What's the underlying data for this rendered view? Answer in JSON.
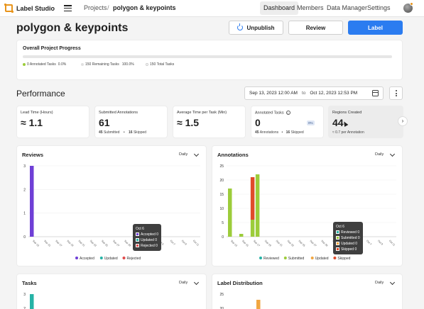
{
  "app": {
    "name": "Label Studio"
  },
  "breadcrumb": {
    "projects": "Projects",
    "separator": "/",
    "current": "polygon & keypoints"
  },
  "nav": {
    "dashboard": "Dashboard",
    "members": "Members",
    "data_manager": "Data Manager",
    "settings": "Settings"
  },
  "header": {
    "title": "polygon & keypoints",
    "unpublish": "Unpublish",
    "review": "Review",
    "label": "Label"
  },
  "progress": {
    "title": "Overall Project Progress",
    "annotated_label": "0 Annotated Tasks",
    "annotated_pct": "0.0%",
    "remaining_label": "150 Remaining Tasks",
    "remaining_pct": "100.0%",
    "total_label": "150 Total Tasks",
    "annotated_fraction": 0.0
  },
  "performance": {
    "title": "Performance",
    "date_from": "Sep 13, 2023 12:00 AM",
    "date_to_word": "to",
    "date_to": "Oct 12, 2023 12:53 PM"
  },
  "metrics": {
    "lead_time": {
      "label": "Lead Time (Hours)",
      "value": "≈ 1.1"
    },
    "submitted": {
      "label": "Submitted Annotations",
      "value": "61",
      "sub_a_num": "45",
      "sub_a_text": "Submitted",
      "sub_b_num": "16",
      "sub_b_text": "Skipped"
    },
    "avg_time": {
      "label": "Average Time per Task (Min)",
      "value": "≈ 1.5"
    },
    "annotated_tasks": {
      "label": "Annotated Tasks",
      "value": "0",
      "badge": "0%",
      "sub_a_num": "45",
      "sub_a_text": "Annotations",
      "sub_b_num": "16",
      "sub_b_text": "Skipped"
    },
    "regions": {
      "label": "Regions Created",
      "value": "44",
      "sub": "≈ 0.7 per Annotation"
    },
    "next_arrow": "›"
  },
  "colors": {
    "accepted": "#6f3fd6",
    "updated": "#26b3a6",
    "rejected": "#e04b4b",
    "reviewed": "#26b3a6",
    "submitted": "#9ccc3a",
    "annot_updated": "#f1a641",
    "skipped": "#e04b2a",
    "primary": "#2b7cf0"
  },
  "panels": {
    "reviews": {
      "title": "Reviews",
      "select": "Daily"
    },
    "annotations": {
      "title": "Annotations",
      "select": "Daily"
    },
    "tasks": {
      "title": "Tasks",
      "select": "Daily"
    },
    "label_distribution": {
      "title": "Label Distribution",
      "select": "Daily"
    }
  },
  "tooltips": {
    "reviews": {
      "date": "Oct 6",
      "l1": "Accepted 0",
      "l2": "Updated 0",
      "l3": "Rejected 0"
    },
    "annotations": {
      "date": "Oct 6",
      "l1": "Reviewed 0",
      "l2": "Submitted 0",
      "l3": "Updated 0",
      "l4": "Skipped 0"
    }
  },
  "chart_data": [
    {
      "name": "Reviews",
      "type": "bar",
      "categories": [
        "Sep 13",
        "Sep 15",
        "Sep 17",
        "Sep 19",
        "Sep 21",
        "Sep 23",
        "Sep 25",
        "Sep 27",
        "Sep 29",
        "Oct 1",
        "Oct 3",
        "Oct 5",
        "Oct 7",
        "Oct 9",
        "Oct 11"
      ],
      "series": [
        {
          "name": "Accepted",
          "values": [
            3,
            0,
            0,
            0,
            0,
            0,
            0,
            0,
            0,
            0,
            0,
            0,
            0,
            0,
            0
          ]
        },
        {
          "name": "Updated",
          "values": [
            0,
            0,
            0,
            0,
            0,
            0,
            0,
            0,
            0,
            0,
            0,
            0,
            0,
            0,
            0
          ]
        },
        {
          "name": "Rejected",
          "values": [
            0,
            0,
            0,
            0,
            0,
            0,
            0,
            0,
            0,
            0,
            0,
            0,
            0,
            0,
            0
          ]
        }
      ],
      "ylim": [
        0,
        3
      ],
      "yticks": [
        "0",
        "1",
        "2",
        "3"
      ],
      "legend": "bottom"
    },
    {
      "name": "Annotations",
      "type": "bar",
      "stacked": true,
      "categories": [
        "Sep 13",
        "Sep 15",
        "Sep 17",
        "Sep 19",
        "Sep 21",
        "Sep 23",
        "Sep 25",
        "Sep 27",
        "Sep 29",
        "Oct 1",
        "Oct 3",
        "Oct 5",
        "Oct 7",
        "Oct 9",
        "Oct 11"
      ],
      "series": [
        {
          "name": "Reviewed",
          "values": [
            0,
            0,
            0,
            0,
            0,
            0,
            0,
            0,
            0,
            0,
            0,
            0,
            0,
            0,
            0
          ]
        },
        {
          "name": "Submitted",
          "values": [
            17,
            1,
            6,
            0,
            0,
            0,
            0,
            0,
            0,
            0,
            0,
            0,
            0,
            0,
            0
          ]
        },
        {
          "name": "Updated",
          "values": [
            0,
            0,
            0,
            0,
            0,
            0,
            0,
            0,
            0,
            0,
            0,
            0,
            0,
            0,
            0
          ]
        },
        {
          "name": "Skipped",
          "values": [
            0,
            0,
            15,
            0,
            0,
            0,
            0,
            0,
            0,
            0,
            0,
            0,
            0,
            0,
            0
          ]
        }
      ],
      "extra_bar": {
        "category": "Sep 17",
        "series": "Submitted",
        "value": 22
      },
      "ylim": [
        0,
        25
      ],
      "yticks": [
        "0",
        "5",
        "10",
        "15",
        "20",
        "25"
      ],
      "legend": "bottom"
    },
    {
      "name": "Tasks",
      "type": "bar",
      "yticks_visible": [
        "3",
        "2"
      ],
      "partially_visible": true
    },
    {
      "name": "Label Distribution",
      "type": "bar",
      "yticks_visible": [
        "25",
        "20"
      ],
      "partially_visible": true
    }
  ]
}
